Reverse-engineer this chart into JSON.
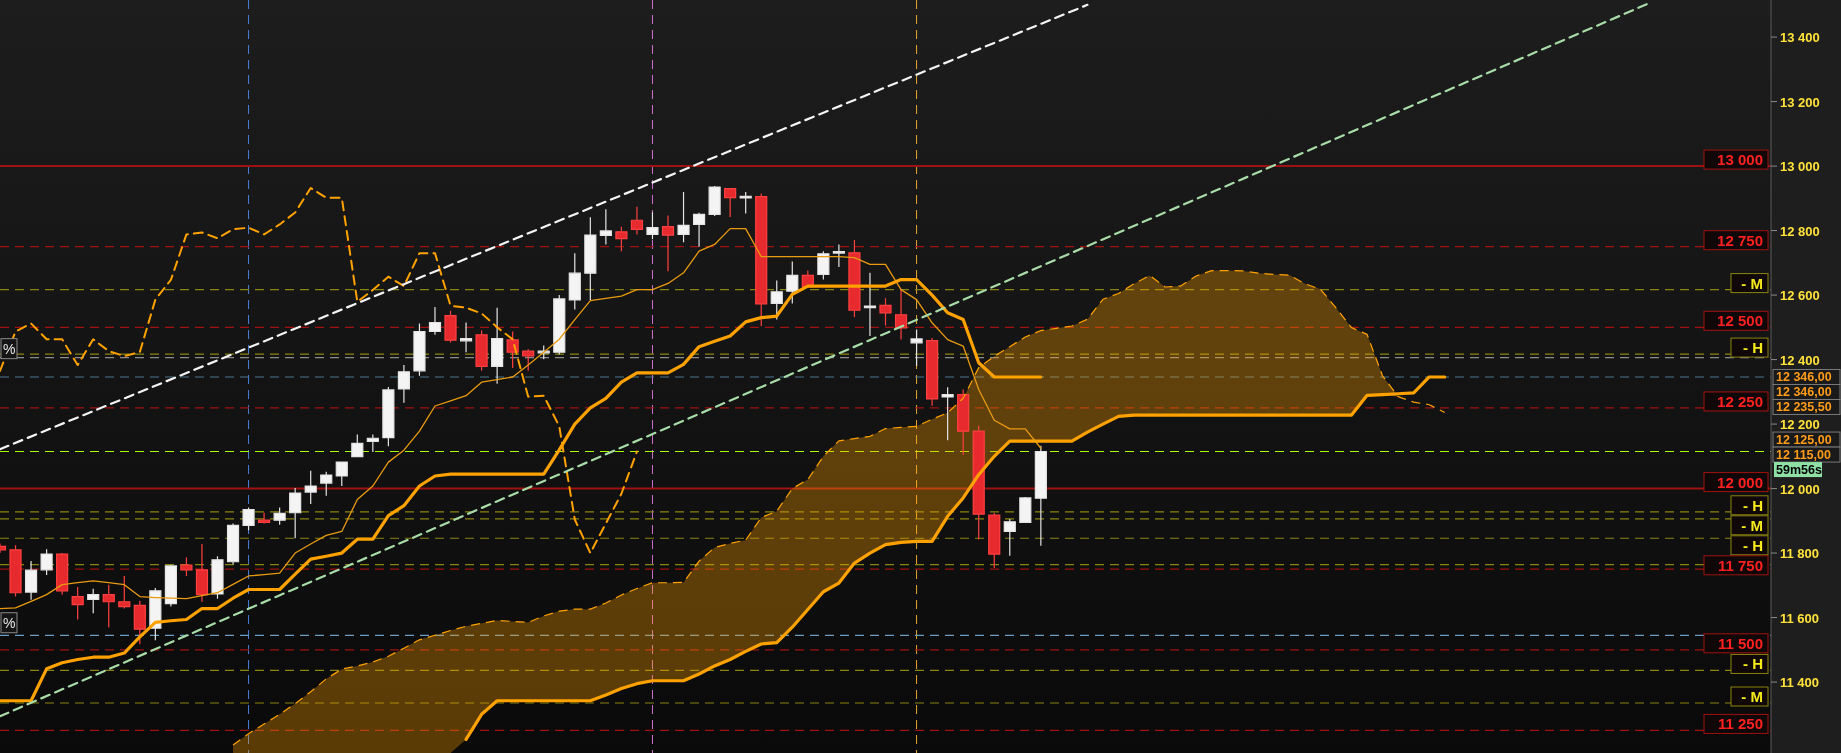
{
  "chart_data": {
    "type": "candlestick",
    "ylim": [
      11180,
      13515
    ],
    "tick_labels": "y",
    "categories": [
      null,
      null,
      null,
      null,
      null,
      null,
      null,
      null,
      null,
      null,
      null,
      null,
      null,
      null,
      null,
      null,
      null,
      null,
      null,
      null,
      null,
      null,
      null,
      null,
      null,
      null,
      null,
      null,
      null,
      null,
      null,
      null,
      null,
      null,
      null,
      null,
      null,
      null,
      null,
      null,
      null,
      null,
      null,
      null,
      null,
      null,
      null,
      null,
      null,
      null,
      null,
      null,
      null,
      null,
      null,
      null,
      null,
      null,
      null,
      null,
      null,
      null,
      null,
      null,
      null,
      null,
      null,
      null,
      null,
      null,
      null,
      null,
      null,
      null,
      null,
      null,
      null,
      null,
      null,
      null,
      null,
      null,
      null,
      null,
      null,
      null,
      null,
      null,
      null,
      null,
      null,
      null,
      null,
      null,
      null,
      null,
      null,
      null,
      null,
      null,
      null,
      null,
      null,
      null,
      null,
      null,
      null,
      null,
      null,
      null,
      null,
      null,
      null,
      null,
      null
    ],
    "yticks": [
      {
        "value": 11400,
        "label": "11 400"
      },
      {
        "value": 11600,
        "label": "11 600"
      },
      {
        "value": 11800,
        "label": "11 800"
      },
      {
        "value": 12000,
        "label": "12 000"
      },
      {
        "value": 12200,
        "label": "12 200"
      },
      {
        "value": 12400,
        "label": "12 400"
      },
      {
        "value": 12600,
        "label": "12 600"
      },
      {
        "value": 12800,
        "label": "12 800"
      },
      {
        "value": 13000,
        "label": "13 000"
      },
      {
        "value": 13200,
        "label": "13 200"
      },
      {
        "value": 13400,
        "label": "13 400"
      }
    ],
    "ohlc": [
      [
        11821,
        11830,
        11800,
        11810
      ],
      [
        11810,
        11824,
        11665,
        11677
      ],
      [
        11679,
        11775,
        11655,
        11747
      ],
      [
        11748,
        11812,
        11732,
        11797
      ],
      [
        11797,
        11800,
        11671,
        11683
      ],
      [
        11665,
        11695,
        11594,
        11640
      ],
      [
        11656,
        11689,
        11613,
        11671
      ],
      [
        11671,
        11702,
        11569,
        11649
      ],
      [
        11649,
        11729,
        11628,
        11634
      ],
      [
        11638,
        11652,
        11517,
        11564
      ],
      [
        11567,
        11692,
        11530,
        11683
      ],
      [
        11643,
        11763,
        11634,
        11760
      ],
      [
        11763,
        11787,
        11729,
        11748
      ],
      [
        11748,
        11828,
        11649,
        11671
      ],
      [
        11673,
        11790,
        11658,
        11779
      ],
      [
        11773,
        11892,
        11765,
        11886
      ],
      [
        11886,
        11941,
        11871,
        11935
      ],
      [
        11902,
        11925,
        11892,
        11895
      ],
      [
        11902,
        11941,
        11888,
        11923
      ],
      [
        11925,
        12002,
        11846,
        11986
      ],
      [
        11989,
        12055,
        11952,
        12008
      ],
      [
        12017,
        12052,
        11978,
        12042
      ],
      [
        12039,
        12082,
        12008,
        12082
      ],
      [
        12099,
        12168,
        12097,
        12140
      ],
      [
        12146,
        12168,
        12113,
        12156
      ],
      [
        12158,
        12315,
        12131,
        12306
      ],
      [
        12309,
        12383,
        12266,
        12362
      ],
      [
        12365,
        12512,
        12350,
        12487
      ],
      [
        12487,
        12563,
        12477,
        12515
      ],
      [
        12536,
        12551,
        12453,
        12460
      ],
      [
        12458,
        12515,
        12423,
        12465
      ],
      [
        12477,
        12490,
        12365,
        12379
      ],
      [
        12379,
        12561,
        12325,
        12465
      ],
      [
        12461,
        12487,
        12374,
        12423
      ],
      [
        12426,
        12432,
        12365,
        12411
      ],
      [
        12421,
        12444,
        12401,
        12426
      ],
      [
        12423,
        12600,
        12416,
        12588
      ],
      [
        12585,
        12730,
        12555,
        12668
      ],
      [
        12668,
        12841,
        12585,
        12786
      ],
      [
        12785,
        12866,
        12757,
        12799
      ],
      [
        12796,
        12812,
        12736,
        12775
      ],
      [
        12832,
        12874,
        12788,
        12804
      ],
      [
        12788,
        12857,
        12773,
        12809
      ],
      [
        12812,
        12847,
        12674,
        12786
      ],
      [
        12788,
        12920,
        12764,
        12816
      ],
      [
        12819,
        12855,
        12750,
        12850
      ],
      [
        12850,
        12938,
        12845,
        12935
      ],
      [
        12930,
        12930,
        12842,
        12902
      ],
      [
        12903,
        12920,
        12853,
        12906
      ],
      [
        12905,
        12915,
        12504,
        12573
      ],
      [
        12574,
        12645,
        12524,
        12610
      ],
      [
        12612,
        12704,
        12574,
        12661
      ],
      [
        12661,
        12676,
        12623,
        12626
      ],
      [
        12664,
        12736,
        12648,
        12728
      ],
      [
        12731,
        12757,
        12687,
        12735
      ],
      [
        12731,
        12771,
        12532,
        12553
      ],
      [
        12562,
        12669,
        12473,
        12566
      ],
      [
        12568,
        12590,
        12506,
        12545
      ],
      [
        12539,
        12617,
        12462,
        12498
      ],
      [
        12452,
        12493,
        12380,
        12464
      ],
      [
        12459,
        12467,
        12257,
        12278
      ],
      [
        12284,
        12314,
        12150,
        12291
      ],
      [
        12291,
        12307,
        12105,
        12178
      ],
      [
        12178,
        12195,
        11842,
        11921
      ],
      [
        11918,
        11924,
        11754,
        11797
      ],
      [
        11867,
        11906,
        11792,
        11897
      ],
      [
        11895,
        11974,
        11893,
        11971
      ],
      [
        11970,
        12133,
        11823,
        12115
      ],
      null,
      null,
      null,
      null,
      null,
      null,
      null,
      null,
      null,
      null,
      null,
      null,
      null,
      null,
      null,
      null,
      null,
      null,
      null,
      null,
      null,
      null,
      null,
      null,
      null,
      null,
      null,
      null,
      null,
      null,
      null,
      null,
      null,
      null,
      null,
      null,
      null,
      null,
      null,
      null,
      null,
      null,
      null,
      null,
      null,
      null,
      null
    ],
    "series": [
      {
        "type": "line",
        "color": "#e89a10",
        "line_style": "solid",
        "values": [
          11628,
          11630,
          11650,
          11671,
          11702,
          11708,
          11714,
          11708,
          11702,
          11665,
          11662,
          11660,
          11659,
          11668,
          11677,
          11703,
          11729,
          11733,
          11738,
          11800,
          11828,
          11855,
          11867,
          11966,
          12008,
          12082,
          12119,
          12178,
          12256,
          12272,
          12288,
          12330,
          12338,
          12346,
          12383,
          12423,
          12463,
          12524,
          12583,
          12590,
          12597,
          12617,
          12617,
          12636,
          12669,
          12736,
          12757,
          12806,
          12806,
          12719,
          12719,
          12719,
          12719,
          12719,
          12719,
          12716,
          12695,
          12695,
          12617,
          12586,
          12514,
          12462,
          12442,
          12307,
          12212,
          12185,
          12185,
          12125,
          null,
          null,
          null,
          null,
          null,
          null,
          null,
          null,
          null,
          null,
          null,
          null,
          null,
          null,
          null,
          null,
          null,
          null,
          null,
          null,
          null,
          null,
          null,
          null,
          null,
          null,
          null,
          null,
          null,
          null,
          null,
          null,
          null,
          null,
          null,
          null,
          null,
          null,
          null,
          null,
          null,
          null,
          null,
          null,
          null,
          null,
          null
        ]
      },
      {
        "type": "line",
        "color": "#ffa200",
        "line_style": "solid",
        "values": [
          11342,
          11342,
          11342,
          11441,
          11460,
          11470,
          11477,
          11477,
          11490,
          11540,
          11585,
          11590,
          11594,
          11628,
          11628,
          11660,
          11687,
          11687,
          11687,
          11735,
          11781,
          11790,
          11800,
          11843,
          11843,
          11916,
          11947,
          12008,
          12039,
          12045,
          12045,
          12045,
          12045,
          12045,
          12045,
          12045,
          12120,
          12200,
          12250,
          12280,
          12330,
          12359,
          12359,
          12359,
          12385,
          12440,
          12457,
          12473,
          12517,
          12530,
          12535,
          12602,
          12628,
          12628,
          12628,
          12628,
          12628,
          12628,
          12648,
          12648,
          12600,
          12545,
          12524,
          12390,
          12346,
          12346,
          12346,
          12346,
          null,
          null,
          null,
          null,
          null,
          null,
          null,
          null,
          null,
          null,
          null,
          null,
          null,
          null,
          null,
          null,
          null,
          null,
          null,
          null,
          null,
          null,
          null,
          null,
          null,
          null,
          null,
          null,
          null,
          null,
          null,
          null,
          null,
          null,
          null,
          null,
          null,
          null,
          null,
          null,
          null,
          null,
          null,
          null,
          null,
          null,
          null
        ]
      },
      {
        "type": "line",
        "color": "#ffa200",
        "line_style": "dashed",
        "values": [
          12365,
          12487,
          12512,
          12463,
          12463,
          12383,
          12463,
          12426,
          12411,
          12423,
          12586,
          12647,
          12788,
          12794,
          12776,
          12804,
          12809,
          12788,
          12819,
          12856,
          12932,
          12902,
          12902,
          12579,
          12616,
          12657,
          12628,
          12730,
          12730,
          12567,
          12561,
          12543,
          12500,
          12463,
          12285,
          12288,
          12193,
          11904,
          11800,
          11892,
          11984,
          12115,
          null,
          null,
          null,
          null,
          null,
          null,
          null,
          null,
          null,
          null,
          null,
          null,
          null,
          null,
          null,
          null,
          null,
          null,
          null,
          null,
          null,
          null,
          null,
          null,
          null,
          null,
          null,
          null,
          null,
          null,
          null,
          null,
          null,
          null,
          null,
          null,
          null,
          null,
          null,
          null,
          null,
          null,
          null,
          null,
          null,
          null,
          null,
          null,
          null,
          null,
          null,
          null,
          null,
          null,
          null,
          null,
          null,
          null,
          null,
          null,
          null,
          null,
          null,
          null,
          null,
          null,
          null,
          null,
          null,
          null,
          null,
          null,
          null
        ]
      },
      {
        "type": "line",
        "color": "#ffa200",
        "line_style": "solid",
        "values": [
          null,
          null,
          null,
          null,
          null,
          null,
          null,
          null,
          null,
          null,
          null,
          null,
          null,
          null,
          null,
          null,
          null,
          null,
          null,
          null,
          null,
          null,
          null,
          null,
          null,
          null,
          null,
          null,
          null,
          null,
          11222,
          11300,
          11342,
          11342,
          11342,
          11342,
          11342,
          11342,
          11342,
          11360,
          11380,
          11395,
          11404,
          11404,
          11404,
          11425,
          11450,
          11470,
          11495,
          11518,
          11522,
          11570,
          11625,
          11680,
          11707,
          11769,
          11800,
          11826,
          11833,
          11836,
          11836,
          11914,
          11971,
          12043,
          12100,
          12147,
          12147,
          12147,
          12147,
          12147,
          12175,
          12200,
          12224,
          12228,
          12228,
          12228,
          12228,
          12228,
          12228,
          12228,
          12228,
          12228,
          12228,
          12228,
          12228,
          12228,
          12228,
          12228,
          12289,
          12291,
          12294,
          12297,
          12346,
          12346,
          null,
          null,
          null,
          null,
          null,
          null,
          null,
          null,
          null,
          null,
          null,
          null,
          null,
          null,
          null,
          null,
          null,
          null,
          null,
          null,
          null
        ]
      },
      {
        "type": "area",
        "color": "#ffa200",
        "line_style": "dashed",
        "values": [
          null,
          null,
          null,
          null,
          null,
          null,
          null,
          null,
          null,
          null,
          null,
          null,
          null,
          null,
          null,
          11205,
          11240,
          11270,
          11300,
          11333,
          11370,
          11410,
          11440,
          11450,
          11462,
          11480,
          11505,
          11531,
          11545,
          11560,
          11573,
          11582,
          11591,
          11588,
          11585,
          11605,
          11620,
          11626,
          11626,
          11645,
          11670,
          11690,
          11708,
          11708,
          11709,
          11775,
          11817,
          11830,
          11840,
          11910,
          11930,
          12000,
          12028,
          12100,
          12148,
          12155,
          12162,
          12186,
          12190,
          12193,
          12215,
          12235,
          12280,
          12375,
          12410,
          12440,
          12470,
          12490,
          12497,
          12504,
          12525,
          12587,
          12605,
          12635,
          12661,
          12625,
          12628,
          12659,
          12676,
          12676,
          12675,
          12668,
          12664,
          12662,
          12635,
          12618,
          12560,
          12499,
          12478,
          12349,
          12285,
          12268,
          12260,
          12236,
          null,
          null,
          null,
          null,
          null,
          null,
          null,
          null,
          null,
          null,
          null,
          null,
          null,
          null,
          null,
          null,
          null,
          null,
          null,
          null,
          null
        ]
      },
      {
        "type": "line",
        "color": "#f4f4f4",
        "line_style": "dashed",
        "values": [
          12122,
          null,
          null,
          null,
          null,
          null,
          null,
          null,
          null,
          null,
          null,
          null,
          null,
          null,
          null,
          null,
          null,
          null,
          null,
          null,
          null,
          null,
          null,
          null,
          null,
          null,
          null,
          null,
          null,
          null,
          null,
          null,
          null,
          null,
          null,
          null,
          null,
          null,
          null,
          null,
          null,
          null,
          null,
          null,
          null,
          null,
          null,
          null,
          null,
          null,
          null,
          null,
          null,
          null,
          null,
          null,
          null,
          null,
          null,
          null,
          null,
          null,
          null,
          null,
          null,
          null,
          null,
          null,
          null,
          null,
          13500,
          null,
          null,
          null,
          null,
          null,
          null,
          null,
          null,
          null,
          null,
          null,
          null,
          null,
          null,
          null,
          null,
          null,
          null,
          null,
          null,
          null,
          null,
          null,
          null,
          null,
          null,
          null,
          null,
          null,
          null,
          null,
          null,
          null,
          null,
          null,
          null,
          null,
          null,
          null,
          null,
          null,
          null,
          null,
          null
        ]
      },
      {
        "type": "line",
        "color": "#a8dca8",
        "line_style": "dashed",
        "values": [
          11294,
          null,
          null,
          null,
          null,
          null,
          null,
          null,
          null,
          null,
          null,
          null,
          null,
          null,
          null,
          null,
          null,
          null,
          null,
          null,
          null,
          null,
          null,
          null,
          null,
          null,
          null,
          null,
          null,
          null,
          null,
          null,
          null,
          null,
          null,
          null,
          null,
          null,
          null,
          null,
          null,
          null,
          null,
          null,
          null,
          null,
          null,
          null,
          null,
          null,
          null,
          null,
          null,
          null,
          null,
          null,
          null,
          null,
          null,
          null,
          null,
          null,
          null,
          null,
          null,
          null,
          null,
          null,
          null,
          null,
          null,
          null,
          null,
          null,
          null,
          null,
          null,
          null,
          null,
          null,
          null,
          null,
          null,
          null,
          null,
          null,
          null,
          null,
          null,
          null,
          null,
          null,
          null,
          null,
          null,
          null,
          null,
          null,
          null,
          null,
          null,
          null,
          null,
          null,
          null,
          null,
          13502,
          null,
          null,
          null,
          null,
          null,
          null,
          null,
          null
        ]
      }
    ],
    "ref_lines": [
      {
        "axis": "y",
        "value": 13000,
        "label": "13 000",
        "color": "#a01212",
        "line_style": "solid"
      },
      {
        "axis": "y",
        "value": 12750,
        "label": "12 750",
        "color": "#a01212",
        "line_style": "dashed"
      },
      {
        "axis": "y",
        "value": 12617,
        "label": "- M",
        "color": "#8a8410",
        "line_style": "dashed"
      },
      {
        "axis": "y",
        "value": 12500,
        "label": "12 500",
        "color": "#a01212",
        "line_style": "dashed"
      },
      {
        "axis": "y",
        "value": 12417,
        "label": "- H",
        "color": "#8a8410",
        "line_style": "dashed"
      },
      {
        "axis": "y",
        "value": 12406,
        "color": "#8c8c8c",
        "line_style": "dashed"
      },
      {
        "axis": "y",
        "value": 12346,
        "color": "#4a7890",
        "line_style": "dashed"
      },
      {
        "axis": "y",
        "value": 12250,
        "label": "12 250",
        "color": "#a01212",
        "line_style": "dashed"
      },
      {
        "axis": "y",
        "value": 12115,
        "color": "#a8ff00",
        "line_style": "dashed"
      },
      {
        "axis": "y",
        "value": 12000,
        "label": "12 000",
        "color": "#a01212",
        "line_style": "solid"
      },
      {
        "axis": "y",
        "value": 11928,
        "label": "- H",
        "color": "#8a8410",
        "line_style": "dashed"
      },
      {
        "axis": "y",
        "value": 11906,
        "label": "- M",
        "color": "#8a8410",
        "line_style": "dashed"
      },
      {
        "axis": "y",
        "value": 11846,
        "label": "- H",
        "color": "#8a8410",
        "line_style": "dashed"
      },
      {
        "axis": "y",
        "value": 11764,
        "color": "#8a8410",
        "line_style": "dashed"
      },
      {
        "axis": "y",
        "value": 11750,
        "label": "11 750",
        "color": "#a01212",
        "line_style": "dashed"
      },
      {
        "axis": "y",
        "value": 11545,
        "color": "#6c9cc0",
        "line_style": "dashed"
      },
      {
        "axis": "y",
        "value": 11500,
        "label": "11 500",
        "color": "#a01212",
        "line_style": "dashed"
      },
      {
        "axis": "y",
        "value": 11436,
        "label": "- H",
        "color": "#8a8410",
        "line_style": "dashed"
      },
      {
        "axis": "y",
        "value": 11335,
        "label": "- M",
        "color": "#8a8410",
        "line_style": "dashed"
      },
      {
        "axis": "y",
        "value": 11250,
        "label": "11 250",
        "color": "#a01212",
        "line_style": "dashed"
      }
    ],
    "annotations": [
      "12 346,00",
      "12 346,00",
      "12 235,50",
      "12 125,00",
      "12 115,00",
      "59m56s",
      "%",
      "%"
    ]
  }
}
